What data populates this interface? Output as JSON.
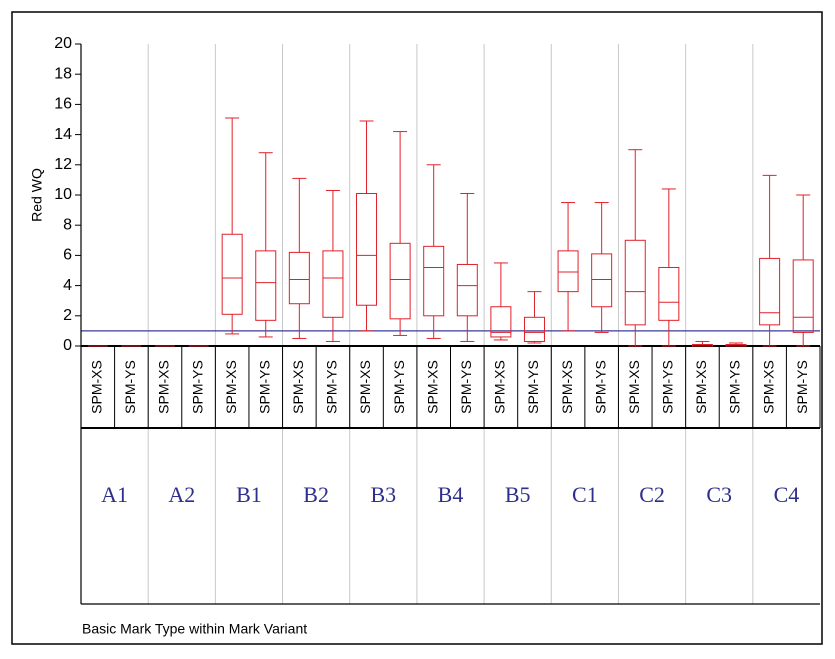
{
  "chart_data": {
    "type": "box",
    "y_label": "Red WQ",
    "x_label": "Basic Mark Type within Mark Variant",
    "categories": [
      "SPM-XS",
      "SPM-YS",
      "SPM-XS",
      "SPM-YS",
      "SPM-XS",
      "SPM-YS",
      "SPM-XS",
      "SPM-YS",
      "SPM-XS",
      "SPM-YS",
      "SPM-XS",
      "SPM-YS",
      "SPM-XS",
      "SPM-YS",
      "SPM-XS",
      "SPM-YS",
      "SPM-XS",
      "SPM-YS",
      "SPM-XS",
      "SPM-YS",
      "SPM-XS",
      "SPM-YS"
    ],
    "groups": [
      "A1",
      "A2",
      "B1",
      "B2",
      "B3",
      "B4",
      "B5",
      "C1",
      "C2",
      "C3",
      "C4"
    ],
    "color": "#e0202a",
    "reference_line": 1,
    "reference_color": "#3a3a9c",
    "min": [
      0,
      0,
      0,
      0,
      0.8,
      0.6,
      0.5,
      0.3,
      1.0,
      0.7,
      0.5,
      0.3,
      0.4,
      0.2,
      1.0,
      0.9,
      0,
      0,
      0,
      0,
      0,
      0
    ],
    "q1": [
      0,
      0,
      0,
      0,
      2.1,
      1.7,
      2.8,
      1.9,
      2.7,
      1.8,
      2.0,
      2.0,
      0.6,
      0.3,
      3.6,
      2.6,
      1.4,
      1.7,
      0,
      0,
      1.4,
      0.9
    ],
    "median": [
      0,
      0,
      0,
      0,
      4.5,
      4.2,
      4.4,
      4.5,
      6.0,
      4.4,
      5.2,
      4.0,
      0.9,
      0.9,
      4.9,
      4.4,
      3.6,
      2.9,
      0,
      0,
      2.2,
      1.9
    ],
    "q3": [
      0,
      0,
      0,
      0,
      7.4,
      6.3,
      6.2,
      6.3,
      10.1,
      6.8,
      6.6,
      5.4,
      2.6,
      1.9,
      6.3,
      6.1,
      7.0,
      5.2,
      0.1,
      0.1,
      5.8,
      5.7
    ],
    "max": [
      0,
      0,
      0,
      0,
      15.1,
      12.8,
      11.1,
      10.3,
      14.9,
      14.2,
      12.0,
      10.1,
      5.5,
      3.6,
      9.5,
      9.5,
      13.0,
      10.4,
      0.3,
      0.2,
      11.3,
      10.0
    ],
    "ylim": [
      0,
      20
    ],
    "yticks": [
      0,
      2,
      4,
      6,
      8,
      10,
      12,
      14,
      16,
      18,
      20
    ]
  }
}
